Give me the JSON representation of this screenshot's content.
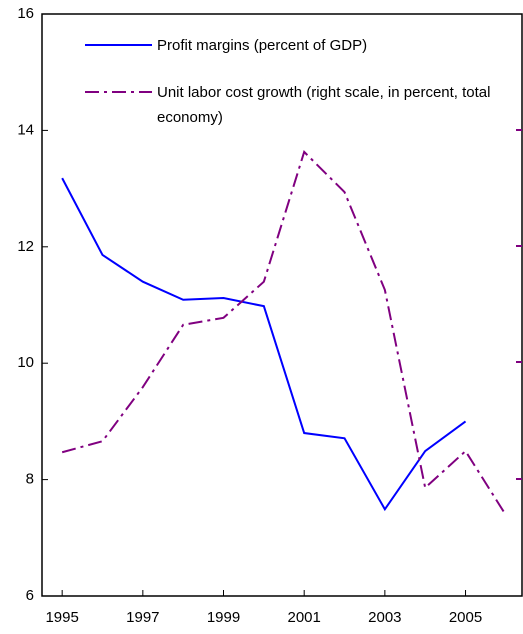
{
  "chart_data": {
    "type": "line",
    "x": [
      1995,
      1996,
      1997,
      1998,
      1999,
      2000,
      2001,
      2002,
      2003,
      2004,
      2005,
      2006
    ],
    "series": [
      {
        "name": "Profit margins (percent of GDP)",
        "color": "#0000ff",
        "dash": "solid",
        "values": [
          13.18,
          11.86,
          11.4,
          11.09,
          11.12,
          10.98,
          8.8,
          8.71,
          7.49,
          8.49,
          9.0,
          null
        ]
      },
      {
        "name": "Unit labor cost growth (right scale, in percent, total economy)",
        "color": "#800080",
        "dash": "dashdot",
        "values": [
          8.47,
          8.66,
          9.59,
          10.66,
          10.78,
          11.4,
          13.63,
          12.94,
          11.26,
          7.86,
          8.49,
          7.39
        ]
      }
    ],
    "xlim": [
      1994.5,
      2006.4
    ],
    "xticks": [
      1995,
      1997,
      1999,
      2001,
      2003,
      2005
    ],
    "ylim": [
      6,
      16
    ],
    "yticks": [
      6,
      8,
      10,
      12,
      14,
      16
    ],
    "grid": false
  }
}
